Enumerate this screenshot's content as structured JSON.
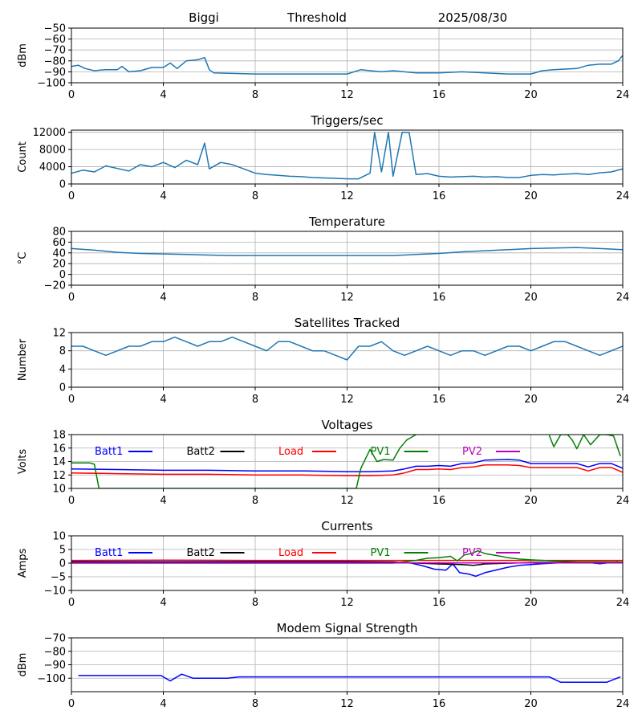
{
  "header": {
    "site": "Biggi",
    "mode": "Threshold",
    "date": "2025/08/30"
  },
  "chart_data": [
    {
      "id": "signal",
      "type": "line",
      "title": "",
      "xlabel": "",
      "ylabel": "dBm",
      "xlim": [
        0,
        24
      ],
      "ylim": [
        -100,
        -50
      ],
      "x_ticks": [
        "0",
        "4",
        "8",
        "12",
        "16",
        "20",
        "24"
      ],
      "y_ticks": [
        "-50",
        "-60",
        "-70",
        "-80",
        "-90",
        "-100"
      ],
      "grid": true,
      "series": [
        {
          "color": "#1f77b4",
          "x": [
            0,
            0.3,
            0.6,
            1,
            1.5,
            2,
            2.2,
            2.5,
            3,
            3.5,
            4,
            4.3,
            4.6,
            5,
            5.5,
            5.8,
            6,
            6.2,
            8,
            10,
            12,
            12.6,
            13,
            13.5,
            14,
            15,
            16,
            17,
            18,
            19,
            20,
            20.5,
            21,
            22,
            22.5,
            23,
            23.5,
            23.8,
            24
          ],
          "y": [
            -85,
            -84,
            -87,
            -89,
            -88,
            -88,
            -85,
            -90,
            -89,
            -86,
            -86,
            -82,
            -87,
            -80,
            -79,
            -77,
            -88,
            -91,
            -92,
            -92,
            -92,
            -88,
            -89,
            -90,
            -89,
            -91,
            -91,
            -90,
            -91,
            -92,
            -92,
            -89,
            -88,
            -87,
            -84,
            -83,
            -83,
            -80,
            -75
          ]
        }
      ]
    },
    {
      "id": "triggers",
      "type": "line",
      "title": "Triggers/sec",
      "xlabel": "",
      "ylabel": "Count",
      "xlim": [
        0,
        24
      ],
      "ylim": [
        0,
        12500
      ],
      "x_ticks": [
        "0",
        "4",
        "8",
        "12",
        "16",
        "20",
        "24"
      ],
      "y_ticks": [
        "0",
        "4000",
        "8000",
        "12000"
      ],
      "grid": true,
      "series": [
        {
          "color": "#1f77b4",
          "x": [
            0,
            0.5,
            1,
            1.5,
            2,
            2.5,
            3,
            3.5,
            4,
            4.5,
            5,
            5.5,
            5.8,
            6,
            6.5,
            7,
            7.5,
            8,
            8.5,
            9,
            9.5,
            10,
            10.5,
            11,
            11.5,
            12,
            12.5,
            13,
            13.2,
            13.5,
            13.8,
            14,
            14.4,
            14.7,
            15,
            15.5,
            16,
            16.5,
            17,
            17.5,
            18,
            18.5,
            19,
            19.5,
            20,
            20.5,
            21,
            21.5,
            22,
            22.5,
            23,
            23.5,
            24
          ],
          "y": [
            2500,
            3200,
            2800,
            4200,
            3600,
            3000,
            4500,
            4000,
            5000,
            3800,
            5500,
            4500,
            9500,
            3500,
            5000,
            4500,
            3500,
            2500,
            2200,
            2000,
            1800,
            1700,
            1500,
            1400,
            1300,
            1200,
            1200,
            2500,
            12000,
            2800,
            12000,
            1800,
            12000,
            12000,
            2200,
            2400,
            1800,
            1600,
            1700,
            1800,
            1600,
            1700,
            1500,
            1500,
            2000,
            2200,
            2100,
            2300,
            2400,
            2200,
            2600,
            2800,
            3500
          ]
        }
      ]
    },
    {
      "id": "temperature",
      "type": "line",
      "title": "Temperature",
      "xlabel": "",
      "ylabel": "°C",
      "xlim": [
        0,
        24
      ],
      "ylim": [
        -20,
        80
      ],
      "x_ticks": [
        "0",
        "4",
        "8",
        "12",
        "16",
        "20",
        "24"
      ],
      "y_ticks": [
        "-20",
        "0",
        "20",
        "40",
        "60",
        "80"
      ],
      "grid": true,
      "series": [
        {
          "color": "#1f77b4",
          "x": [
            0,
            1,
            2,
            3,
            4,
            5,
            6,
            7,
            8,
            9,
            10,
            11,
            12,
            13,
            14,
            15,
            16,
            17,
            18,
            19,
            20,
            21,
            22,
            23,
            24
          ],
          "y": [
            48,
            45,
            41,
            39,
            38,
            37,
            36,
            35,
            35,
            35,
            35,
            35,
            35,
            35,
            35,
            37,
            39,
            42,
            44,
            46,
            48,
            49,
            50,
            48,
            46
          ]
        }
      ]
    },
    {
      "id": "satellites",
      "type": "line",
      "title": "Satellites Tracked",
      "xlabel": "",
      "ylabel": "Number",
      "xlim": [
        0,
        24
      ],
      "ylim": [
        0,
        12
      ],
      "x_ticks": [
        "0",
        "4",
        "8",
        "12",
        "16",
        "20",
        "24"
      ],
      "y_ticks": [
        "0",
        "4",
        "8",
        "12"
      ],
      "grid": true,
      "series": [
        {
          "color": "#1f77b4",
          "x": [
            0,
            0.5,
            1,
            1.5,
            2,
            2.5,
            3,
            3.5,
            4,
            4.5,
            5,
            5.5,
            6,
            6.5,
            7,
            7.5,
            8,
            8.5,
            9,
            9.5,
            10,
            10.5,
            11,
            11.5,
            12,
            12.5,
            13,
            13.5,
            14,
            14.5,
            15,
            15.5,
            16,
            16.5,
            17,
            17.5,
            18,
            18.5,
            19,
            19.5,
            20,
            20.5,
            21,
            21.5,
            22,
            22.5,
            23,
            23.5,
            24
          ],
          "y": [
            9,
            9,
            8,
            7,
            8,
            9,
            9,
            10,
            10,
            11,
            10,
            9,
            10,
            10,
            11,
            10,
            9,
            8,
            10,
            10,
            9,
            8,
            8,
            7,
            6,
            9,
            9,
            10,
            8,
            7,
            8,
            9,
            8,
            7,
            8,
            8,
            7,
            8,
            9,
            9,
            8,
            9,
            10,
            10,
            9,
            8,
            7,
            8,
            9
          ]
        }
      ]
    },
    {
      "id": "voltages",
      "type": "line",
      "title": "Voltages",
      "xlabel": "",
      "ylabel": "Volts",
      "xlim": [
        0,
        24
      ],
      "ylim": [
        10,
        18
      ],
      "x_ticks": [
        "0",
        "4",
        "8",
        "12",
        "16",
        "20",
        "24"
      ],
      "y_ticks": [
        "10",
        "12",
        "14",
        "16",
        "18"
      ],
      "grid": true,
      "legend": "top",
      "series": [
        {
          "name": "Batt1",
          "color": "#0000ff",
          "x": [
            0,
            2,
            4,
            6,
            8,
            10,
            12,
            13,
            14,
            14.5,
            15,
            15.5,
            16,
            16.5,
            17,
            17.5,
            18,
            19,
            19.5,
            20,
            21,
            22,
            22.5,
            23,
            23.5,
            24
          ],
          "y": [
            12.9,
            12.8,
            12.7,
            12.7,
            12.6,
            12.6,
            12.5,
            12.5,
            12.6,
            12.9,
            13.3,
            13.3,
            13.4,
            13.3,
            13.7,
            13.8,
            14.2,
            14.3,
            14.2,
            13.7,
            13.7,
            13.7,
            13.2,
            13.7,
            13.7,
            13.0
          ]
        },
        {
          "name": "Batt2",
          "color": "#000000",
          "x": [],
          "y": []
        },
        {
          "name": "Load",
          "color": "#ff0000",
          "x": [
            0,
            2,
            4,
            6,
            8,
            10,
            12,
            13,
            14,
            14.5,
            15,
            15.5,
            16,
            16.5,
            17,
            17.5,
            18,
            19,
            19.5,
            20,
            21,
            22,
            22.5,
            23,
            23.5,
            24
          ],
          "y": [
            12.3,
            12.2,
            12.1,
            12.1,
            12.0,
            12.0,
            11.9,
            11.9,
            12.0,
            12.3,
            12.8,
            12.8,
            12.9,
            12.8,
            13.1,
            13.2,
            13.5,
            13.5,
            13.4,
            13.1,
            13.1,
            13.1,
            12.6,
            13.1,
            13.1,
            12.4
          ]
        },
        {
          "name": "PV1",
          "color": "#008000",
          "x": [
            0,
            0.8,
            1.0,
            1.2,
            12.4,
            12.6,
            13.0,
            13.3,
            13.6,
            14.0,
            14.3,
            14.6,
            15.0
          ],
          "y": [
            13.8,
            13.8,
            13.6,
            10.0,
            10.0,
            13.0,
            15.8,
            14.0,
            14.3,
            14.2,
            16.0,
            17.2,
            18.0
          ]
        },
        {
          "name": "PV2",
          "color": "#bf00bf",
          "x": [],
          "y": []
        }
      ],
      "extra_segments": [
        {
          "color": "#008000",
          "x": [
            20.8,
            21.0,
            21.3,
            21.6,
            21.8,
            22.0,
            22.3,
            22.6,
            23.0,
            23.3,
            23.6,
            23.9
          ],
          "y": [
            17.9,
            16.2,
            18.0,
            18.0,
            17.2,
            15.9,
            18.0,
            16.5,
            18.0,
            18.0,
            17.8,
            14.8
          ]
        }
      ]
    },
    {
      "id": "currents",
      "type": "line",
      "title": "Currents",
      "xlabel": "",
      "ylabel": "Amps",
      "xlim": [
        0,
        24
      ],
      "ylim": [
        -10,
        10
      ],
      "x_ticks": [
        "0",
        "4",
        "8",
        "12",
        "16",
        "20",
        "24"
      ],
      "y_ticks": [
        "-10",
        "-5",
        "0",
        "5",
        "10"
      ],
      "grid": true,
      "legend": "top",
      "series": [
        {
          "name": "Batt1",
          "color": "#0000ff",
          "x": [
            0,
            2,
            4,
            6,
            8,
            10,
            12,
            14,
            14.8,
            15.3,
            15.8,
            16.3,
            16.6,
            16.9,
            17.3,
            17.6,
            18,
            18.5,
            19,
            19.5,
            20,
            20.5,
            21,
            21.5,
            22,
            22.5,
            23,
            23.8
          ],
          "y": [
            0.5,
            0.5,
            0.5,
            0.5,
            0.5,
            0.5,
            0.5,
            0.4,
            0,
            -1,
            -2.2,
            -2.6,
            -0.3,
            -3.5,
            -4.0,
            -4.8,
            -3.5,
            -2.5,
            -1.5,
            -0.8,
            -0.5,
            -0.2,
            0,
            0.2,
            0.3,
            0.2,
            -0.2,
            0.5
          ]
        },
        {
          "name": "Batt2",
          "color": "#000000",
          "x": [
            0,
            14,
            16,
            17,
            17.5,
            18,
            20,
            24
          ],
          "y": [
            0.3,
            0.3,
            -0.3,
            -0.5,
            -0.8,
            -0.3,
            0.2,
            0.3
          ]
        },
        {
          "name": "Load",
          "color": "#ff0000",
          "x": [
            0,
            4,
            8,
            12,
            16,
            20,
            24
          ],
          "y": [
            1.0,
            1.1,
            1.0,
            1.0,
            1.0,
            1.0,
            1.0
          ]
        },
        {
          "name": "PV1",
          "color": "#008000",
          "x": [
            0,
            14,
            15,
            15.5,
            16,
            16.5,
            16.8,
            17.1,
            17.4,
            17.7,
            18,
            18.5,
            19,
            19.5,
            20,
            21,
            22,
            24
          ],
          "y": [
            0,
            0,
            1.0,
            1.8,
            2.0,
            2.5,
            0.8,
            3.0,
            3.5,
            4.5,
            3.5,
            2.8,
            2.0,
            1.5,
            1.2,
            0.8,
            0.5,
            0.4
          ]
        },
        {
          "name": "PV2",
          "color": "#bf00bf",
          "x": [
            0,
            4,
            8,
            12,
            16,
            20,
            24
          ],
          "y": [
            0.1,
            0.1,
            0.1,
            0.1,
            0.1,
            0.1,
            0.1
          ]
        }
      ]
    },
    {
      "id": "modem",
      "type": "line",
      "title": "Modem Signal Strength",
      "xlabel": "",
      "ylabel": "dBm",
      "xlim": [
        0,
        24
      ],
      "ylim": [
        -110,
        -70
      ],
      "x_ticks": [
        "0",
        "4",
        "8",
        "12",
        "16",
        "20",
        "24"
      ],
      "y_ticks": [
        "-70",
        "-80",
        "-90",
        "-100"
      ],
      "grid": true,
      "series": [
        {
          "color": "#0000ff",
          "x": [
            0.3,
            3.9,
            4.3,
            4.8,
            5.3,
            6.8,
            7.3,
            20.8,
            21.3,
            23.3,
            23.9
          ],
          "y": [
            -98,
            -98,
            -102,
            -97,
            -100,
            -100,
            -99,
            -99,
            -103,
            -103,
            -99
          ]
        }
      ]
    }
  ]
}
